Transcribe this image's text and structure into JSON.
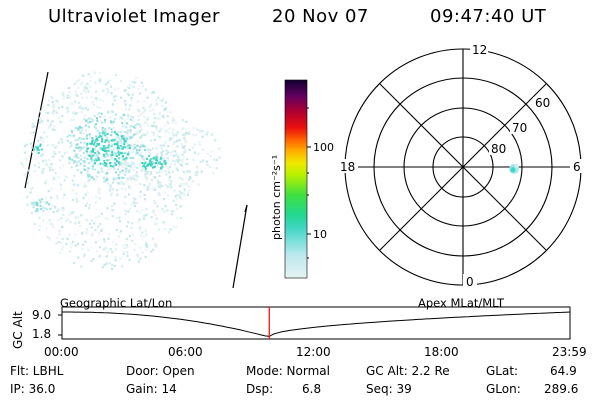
{
  "header": {
    "title": "Ultraviolet Imager",
    "date": "20 Nov 07",
    "time": "09:47:40 UT"
  },
  "colorbar": {
    "units": "photon cm⁻²s⁻¹",
    "ticks": [
      "100",
      "10"
    ]
  },
  "polar": {
    "mlt_labels": {
      "top": "12",
      "left": "18",
      "right": "6",
      "bottom": "0"
    },
    "lat_labels": [
      "60",
      "70",
      "80"
    ]
  },
  "timeline": {
    "axis_title": "GC Alt",
    "ymax": "9.0",
    "ymin": "1.8",
    "left_label": "Geographic Lat/Lon",
    "right_label": "Apex MLat/MLT",
    "xticks": [
      "00:00",
      "06:00",
      "12:00",
      "18:00",
      "23:59"
    ],
    "marker_time_fraction": 0.408,
    "colors": {
      "marker": "#ff0000",
      "curve": "#000000"
    }
  },
  "footer": {
    "row1": {
      "flt": "Flt: LBHL",
      "door": "Door: Open",
      "mode": "Mode: Normal",
      "gcalt": "GC Alt: 2.2 Re",
      "glat_label": "GLat:",
      "glat_value": "64.9"
    },
    "row2": {
      "ip": "IP: 36.0",
      "gain": "Gain: 14",
      "dsp_label": "Dsp:",
      "dsp_value": "6.8",
      "seq": "Seq: 39",
      "glon_label": "GLon:",
      "glon_value": "289.6"
    }
  }
}
